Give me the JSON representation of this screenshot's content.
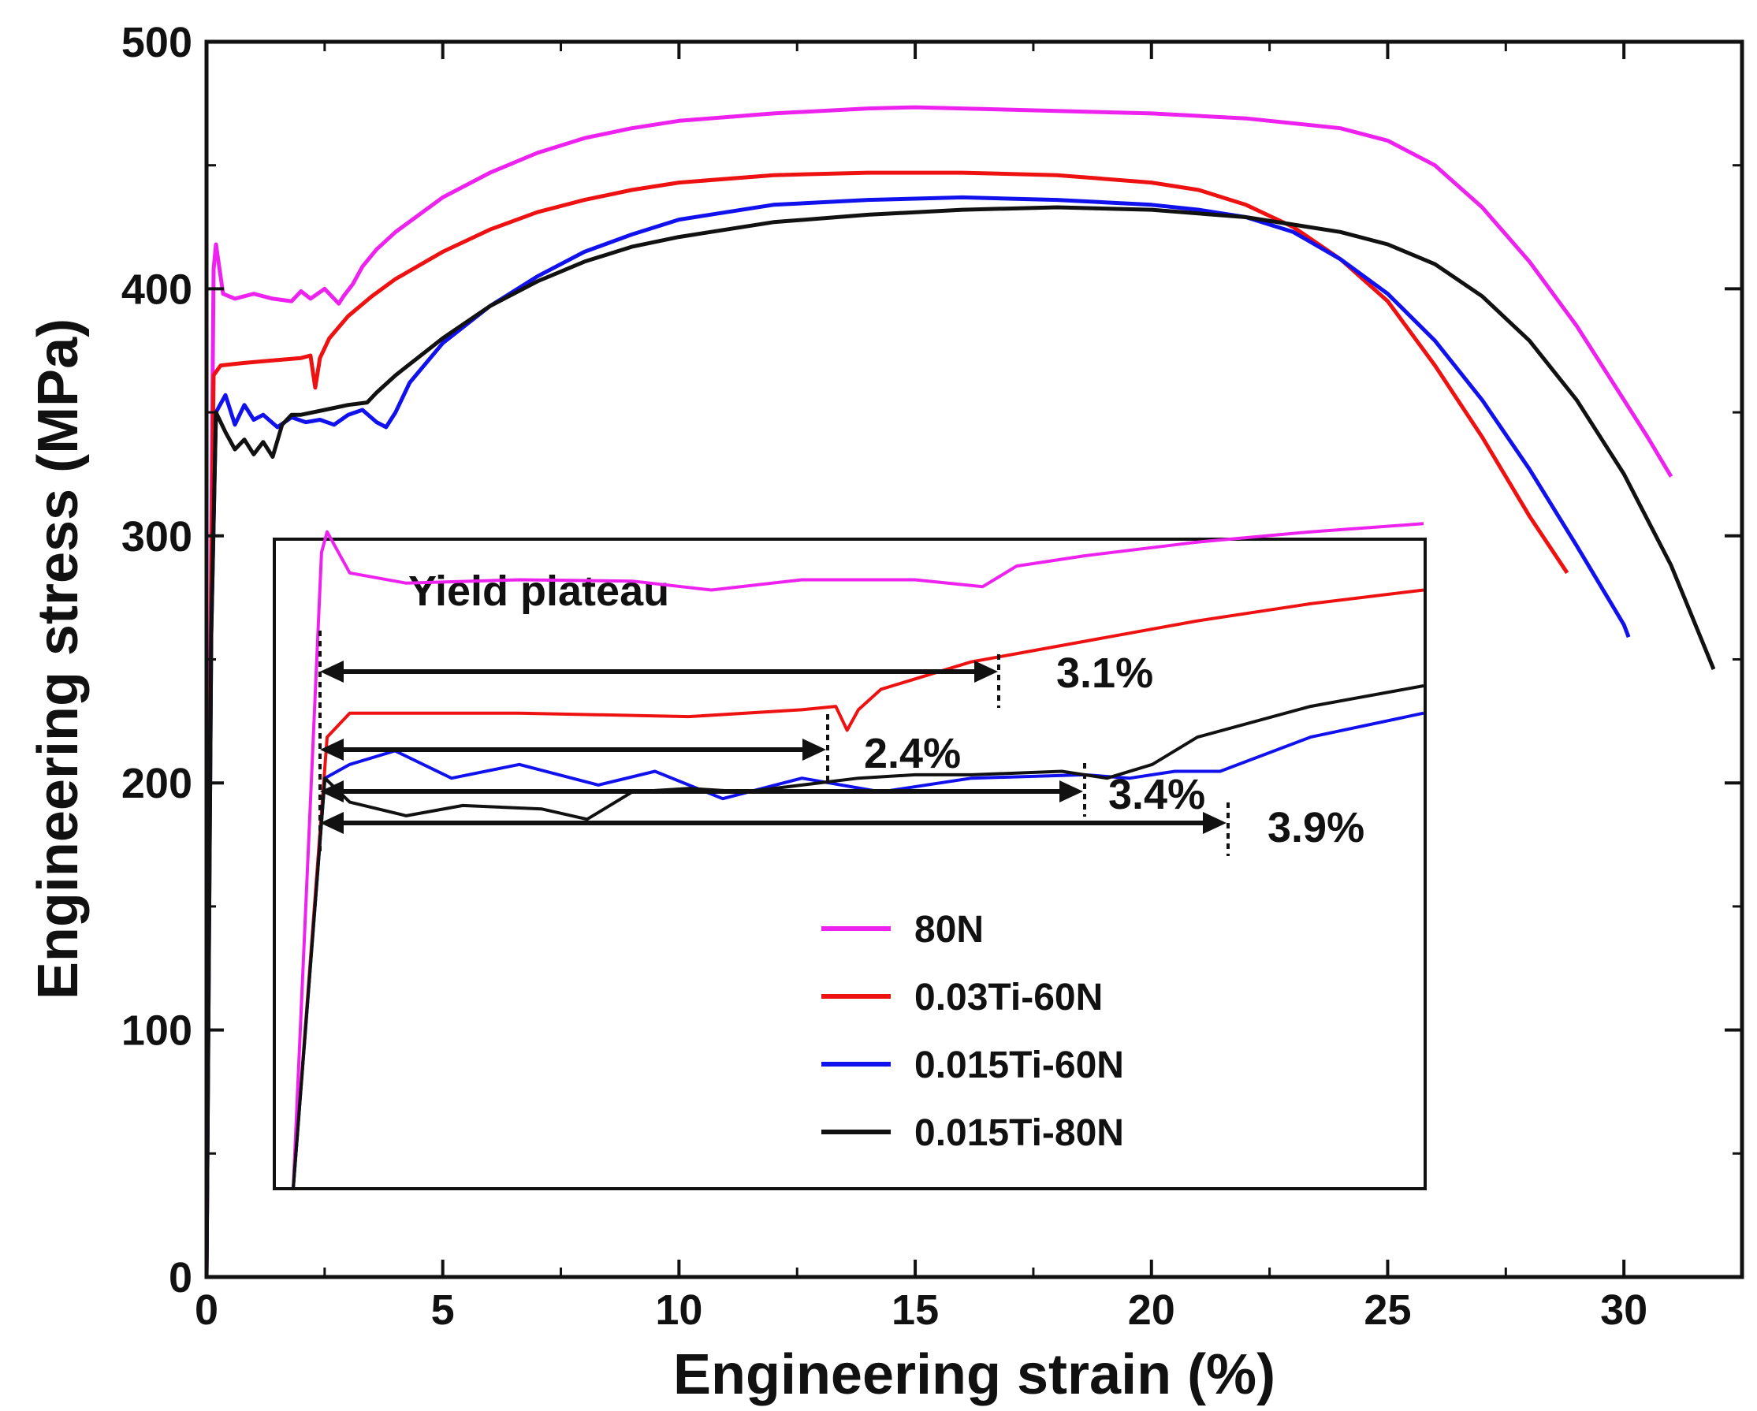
{
  "chart_data": {
    "type": "line",
    "xlabel": "Engineering strain (%)",
    "ylabel": "Engineering stress (MPa)",
    "xlim": [
      0,
      32.5
    ],
    "ylim": [
      0,
      500
    ],
    "xticks": [
      "0",
      "5",
      "10",
      "15",
      "20",
      "25",
      "30"
    ],
    "xtick_values": [
      0,
      5,
      10,
      15,
      20,
      25,
      30
    ],
    "yticks": [
      "0",
      "100",
      "200",
      "300",
      "400",
      "500"
    ],
    "ytick_values": [
      0,
      100,
      200,
      300,
      400,
      500
    ],
    "legend_position": "inside inset, lower-middle",
    "series": [
      {
        "name": "80N",
        "color": "#ee22ee",
        "x": [
          0,
          0.1,
          0.15,
          0.2,
          0.35,
          0.6,
          1.0,
          1.4,
          1.8,
          2.0,
          2.2,
          2.5,
          2.8,
          2.9,
          3.1,
          3.3,
          3.6,
          4.0,
          5.0,
          6.0,
          7.0,
          8.0,
          9.0,
          10.0,
          12.0,
          14.0,
          15.0,
          16.0,
          18.0,
          20.0,
          22.0,
          24.0,
          25.0,
          26.0,
          27.0,
          28.0,
          29.0,
          30.0,
          30.5,
          31.0
        ],
        "y": [
          0,
          300,
          408,
          418,
          398,
          396,
          398,
          396,
          395,
          399,
          396,
          400,
          394,
          397,
          402,
          409,
          416,
          423,
          437,
          447,
          455,
          461,
          465,
          468,
          471,
          473,
          473.5,
          473,
          472,
          471,
          469,
          465,
          460,
          450,
          433,
          411,
          385,
          355,
          340,
          324
        ]
      },
      {
        "name": "0.03Ti-60N",
        "color": "#ee1111",
        "x": [
          0,
          0.1,
          0.15,
          0.3,
          0.8,
          1.4,
          2.0,
          2.2,
          2.3,
          2.4,
          2.6,
          3.0,
          3.5,
          4.0,
          5.0,
          6.0,
          7.0,
          8.0,
          9.0,
          10.0,
          12.0,
          14.0,
          16.0,
          18.0,
          20.0,
          21.0,
          22.0,
          23.0,
          24.0,
          25.0,
          26.0,
          27.0,
          28.0,
          28.8
        ],
        "y": [
          0,
          280,
          365,
          369,
          370,
          371,
          372,
          373,
          360,
          372,
          380,
          389,
          397,
          404,
          415,
          424,
          431,
          436,
          440,
          443,
          446,
          447,
          447,
          446,
          443,
          440,
          434,
          425,
          412,
          395,
          369,
          340,
          308,
          285
        ]
      },
      {
        "name": "0.015Ti-60N",
        "color": "#1111ee",
        "x": [
          0,
          0.1,
          0.2,
          0.4,
          0.6,
          0.8,
          1.0,
          1.2,
          1.5,
          1.8,
          2.1,
          2.4,
          2.7,
          3.0,
          3.3,
          3.6,
          3.8,
          4.0,
          4.3,
          5.0,
          6.0,
          7.0,
          8.0,
          9.0,
          10.0,
          12.0,
          14.0,
          16.0,
          18.0,
          20.0,
          21.0,
          22.0,
          23.0,
          24.0,
          25.0,
          26.0,
          27.0,
          28.0,
          29.0,
          30.0,
          30.1
        ],
        "y": [
          0,
          260,
          350,
          357,
          345,
          353,
          347,
          349,
          344,
          348,
          346,
          347,
          345,
          349,
          351,
          346,
          344,
          350,
          362,
          378,
          393,
          405,
          415,
          422,
          428,
          434,
          436,
          437,
          436,
          434,
          432,
          429,
          423,
          412,
          398,
          379,
          355,
          327,
          296,
          264,
          259
        ]
      },
      {
        "name": "0.015Ti-80N",
        "color": "#111111",
        "x": [
          0,
          0.1,
          0.2,
          0.4,
          0.6,
          0.8,
          1.0,
          1.2,
          1.4,
          1.6,
          1.8,
          2.0,
          2.5,
          3.0,
          3.4,
          3.6,
          4.0,
          5.0,
          6.0,
          7.0,
          8.0,
          9.0,
          10.0,
          12.0,
          14.0,
          16.0,
          18.0,
          20.0,
          22.0,
          24.0,
          25.0,
          26.0,
          27.0,
          28.0,
          29.0,
          30.0,
          31.0,
          31.9
        ],
        "y": [
          0,
          260,
          350,
          342,
          335,
          339,
          333,
          338,
          332,
          345,
          349,
          349,
          351,
          353,
          354,
          358,
          365,
          380,
          393,
          403,
          411,
          417,
          421,
          427,
          430,
          432,
          433,
          432,
          429,
          423,
          418,
          410,
          397,
          379,
          355,
          325,
          288,
          246
        ]
      }
    ],
    "inset": {
      "title": "Yield plateau",
      "annotations": [
        {
          "label": "3.1%",
          "series": "80N"
        },
        {
          "label": "2.4%",
          "series": "0.03Ti-60N"
        },
        {
          "label": "3.4%",
          "series": "0.015Ti-80N"
        },
        {
          "label": "3.9%",
          "series": "0.015Ti-60N"
        }
      ],
      "curves": {
        "80N": [
          [
            0,
            0
          ],
          [
            0.025,
            0.93
          ],
          [
            0.03,
            0.96
          ],
          [
            0.05,
            0.9
          ],
          [
            0.1,
            0.885
          ],
          [
            0.2,
            0.89
          ],
          [
            0.3,
            0.888
          ],
          [
            0.37,
            0.875
          ],
          [
            0.45,
            0.89
          ],
          [
            0.55,
            0.89
          ],
          [
            0.61,
            0.88
          ],
          [
            0.62,
            0.89
          ],
          [
            0.64,
            0.91
          ],
          [
            0.7,
            0.925
          ],
          [
            0.8,
            0.945
          ],
          [
            0.9,
            0.96
          ],
          [
            1.0,
            0.972
          ]
        ],
        "0.03Ti-60N": [
          [
            0,
            0
          ],
          [
            0.03,
            0.66
          ],
          [
            0.05,
            0.695
          ],
          [
            0.2,
            0.695
          ],
          [
            0.35,
            0.69
          ],
          [
            0.45,
            0.7
          ],
          [
            0.48,
            0.705
          ],
          [
            0.49,
            0.67
          ],
          [
            0.5,
            0.7
          ],
          [
            0.52,
            0.73
          ],
          [
            0.6,
            0.77
          ],
          [
            0.7,
            0.8
          ],
          [
            0.8,
            0.83
          ],
          [
            0.9,
            0.855
          ],
          [
            1.0,
            0.875
          ]
        ],
        "0.015Ti-60N": [
          [
            0,
            0
          ],
          [
            0.028,
            0.6
          ],
          [
            0.05,
            0.62
          ],
          [
            0.09,
            0.64
          ],
          [
            0.14,
            0.6
          ],
          [
            0.2,
            0.62
          ],
          [
            0.27,
            0.59
          ],
          [
            0.32,
            0.61
          ],
          [
            0.38,
            0.57
          ],
          [
            0.45,
            0.6
          ],
          [
            0.52,
            0.58
          ],
          [
            0.6,
            0.6
          ],
          [
            0.7,
            0.605
          ],
          [
            0.74,
            0.6
          ],
          [
            0.78,
            0.61
          ],
          [
            0.82,
            0.61
          ],
          [
            0.9,
            0.66
          ],
          [
            1.0,
            0.695
          ]
        ],
        "0.015Ti-80N": [
          [
            0,
            0
          ],
          [
            0.028,
            0.6
          ],
          [
            0.05,
            0.565
          ],
          [
            0.1,
            0.545
          ],
          [
            0.15,
            0.56
          ],
          [
            0.22,
            0.555
          ],
          [
            0.26,
            0.54
          ],
          [
            0.3,
            0.58
          ],
          [
            0.35,
            0.585
          ],
          [
            0.4,
            0.58
          ],
          [
            0.5,
            0.6
          ],
          [
            0.55,
            0.605
          ],
          [
            0.6,
            0.605
          ],
          [
            0.68,
            0.61
          ],
          [
            0.72,
            0.6
          ],
          [
            0.76,
            0.62
          ],
          [
            0.8,
            0.66
          ],
          [
            0.9,
            0.705
          ],
          [
            1.0,
            0.735
          ]
        ]
      }
    }
  }
}
